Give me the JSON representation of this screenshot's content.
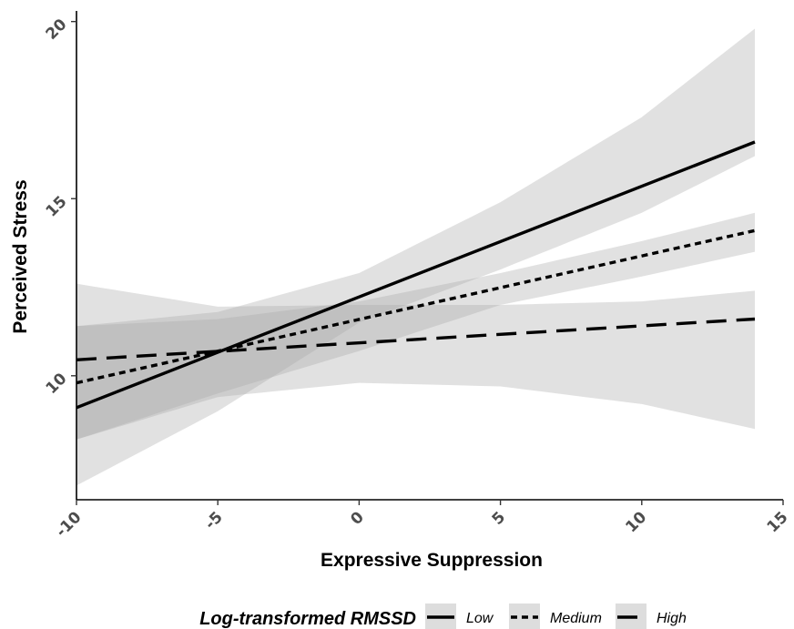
{
  "chart_data": {
    "type": "line",
    "xlabel": "Expressive Suppression",
    "ylabel": "Perceived Stress",
    "xlim": [
      -10,
      15
    ],
    "ylim": [
      6.5,
      20.3
    ],
    "x_ticks": [
      -10,
      -5,
      0,
      5,
      10,
      15
    ],
    "y_ticks": [
      10,
      15,
      20
    ],
    "x_range": [
      -10,
      14
    ],
    "legend": {
      "title": "Log-transformed RMSSD",
      "position": "bottom"
    },
    "series": [
      {
        "name": "Low",
        "dash": "solid",
        "line": [
          [
            -10,
            9.1
          ],
          [
            14,
            16.6
          ]
        ],
        "ci_lower": [
          [
            -10,
            6.9
          ],
          [
            -5,
            9.0
          ],
          [
            0,
            11.5
          ],
          [
            5,
            13.0
          ],
          [
            10,
            14.6
          ],
          [
            14,
            16.2
          ]
        ],
        "ci_upper": [
          [
            -10,
            11.4
          ],
          [
            -5,
            11.8
          ],
          [
            0,
            12.9
          ],
          [
            5,
            14.9
          ],
          [
            10,
            17.3
          ],
          [
            14,
            19.8
          ]
        ]
      },
      {
        "name": "Medium",
        "dash": "dotted",
        "line": [
          [
            -10,
            9.8
          ],
          [
            14,
            14.1
          ]
        ],
        "ci_lower": [
          [
            -10,
            8.2
          ],
          [
            -5,
            9.5
          ],
          [
            0,
            10.7
          ],
          [
            5,
            12.0
          ],
          [
            10,
            12.8
          ],
          [
            14,
            13.5
          ]
        ],
        "ci_upper": [
          [
            -10,
            11.4
          ],
          [
            -5,
            11.6
          ],
          [
            0,
            12.1
          ],
          [
            5,
            12.9
          ],
          [
            10,
            13.8
          ],
          [
            14,
            14.6
          ]
        ]
      },
      {
        "name": "High",
        "dash": "dashed",
        "line": [
          [
            -10,
            10.45
          ],
          [
            14,
            11.6
          ]
        ],
        "ci_lower": [
          [
            -10,
            8.2
          ],
          [
            -5,
            9.4
          ],
          [
            0,
            9.8
          ],
          [
            5,
            9.7
          ],
          [
            10,
            9.2
          ],
          [
            14,
            8.5
          ]
        ],
        "ci_upper": [
          [
            -10,
            12.6
          ],
          [
            -5,
            11.95
          ],
          [
            0,
            12.0
          ],
          [
            5,
            12.0
          ],
          [
            10,
            12.1
          ],
          [
            14,
            12.4
          ]
        ]
      }
    ]
  }
}
